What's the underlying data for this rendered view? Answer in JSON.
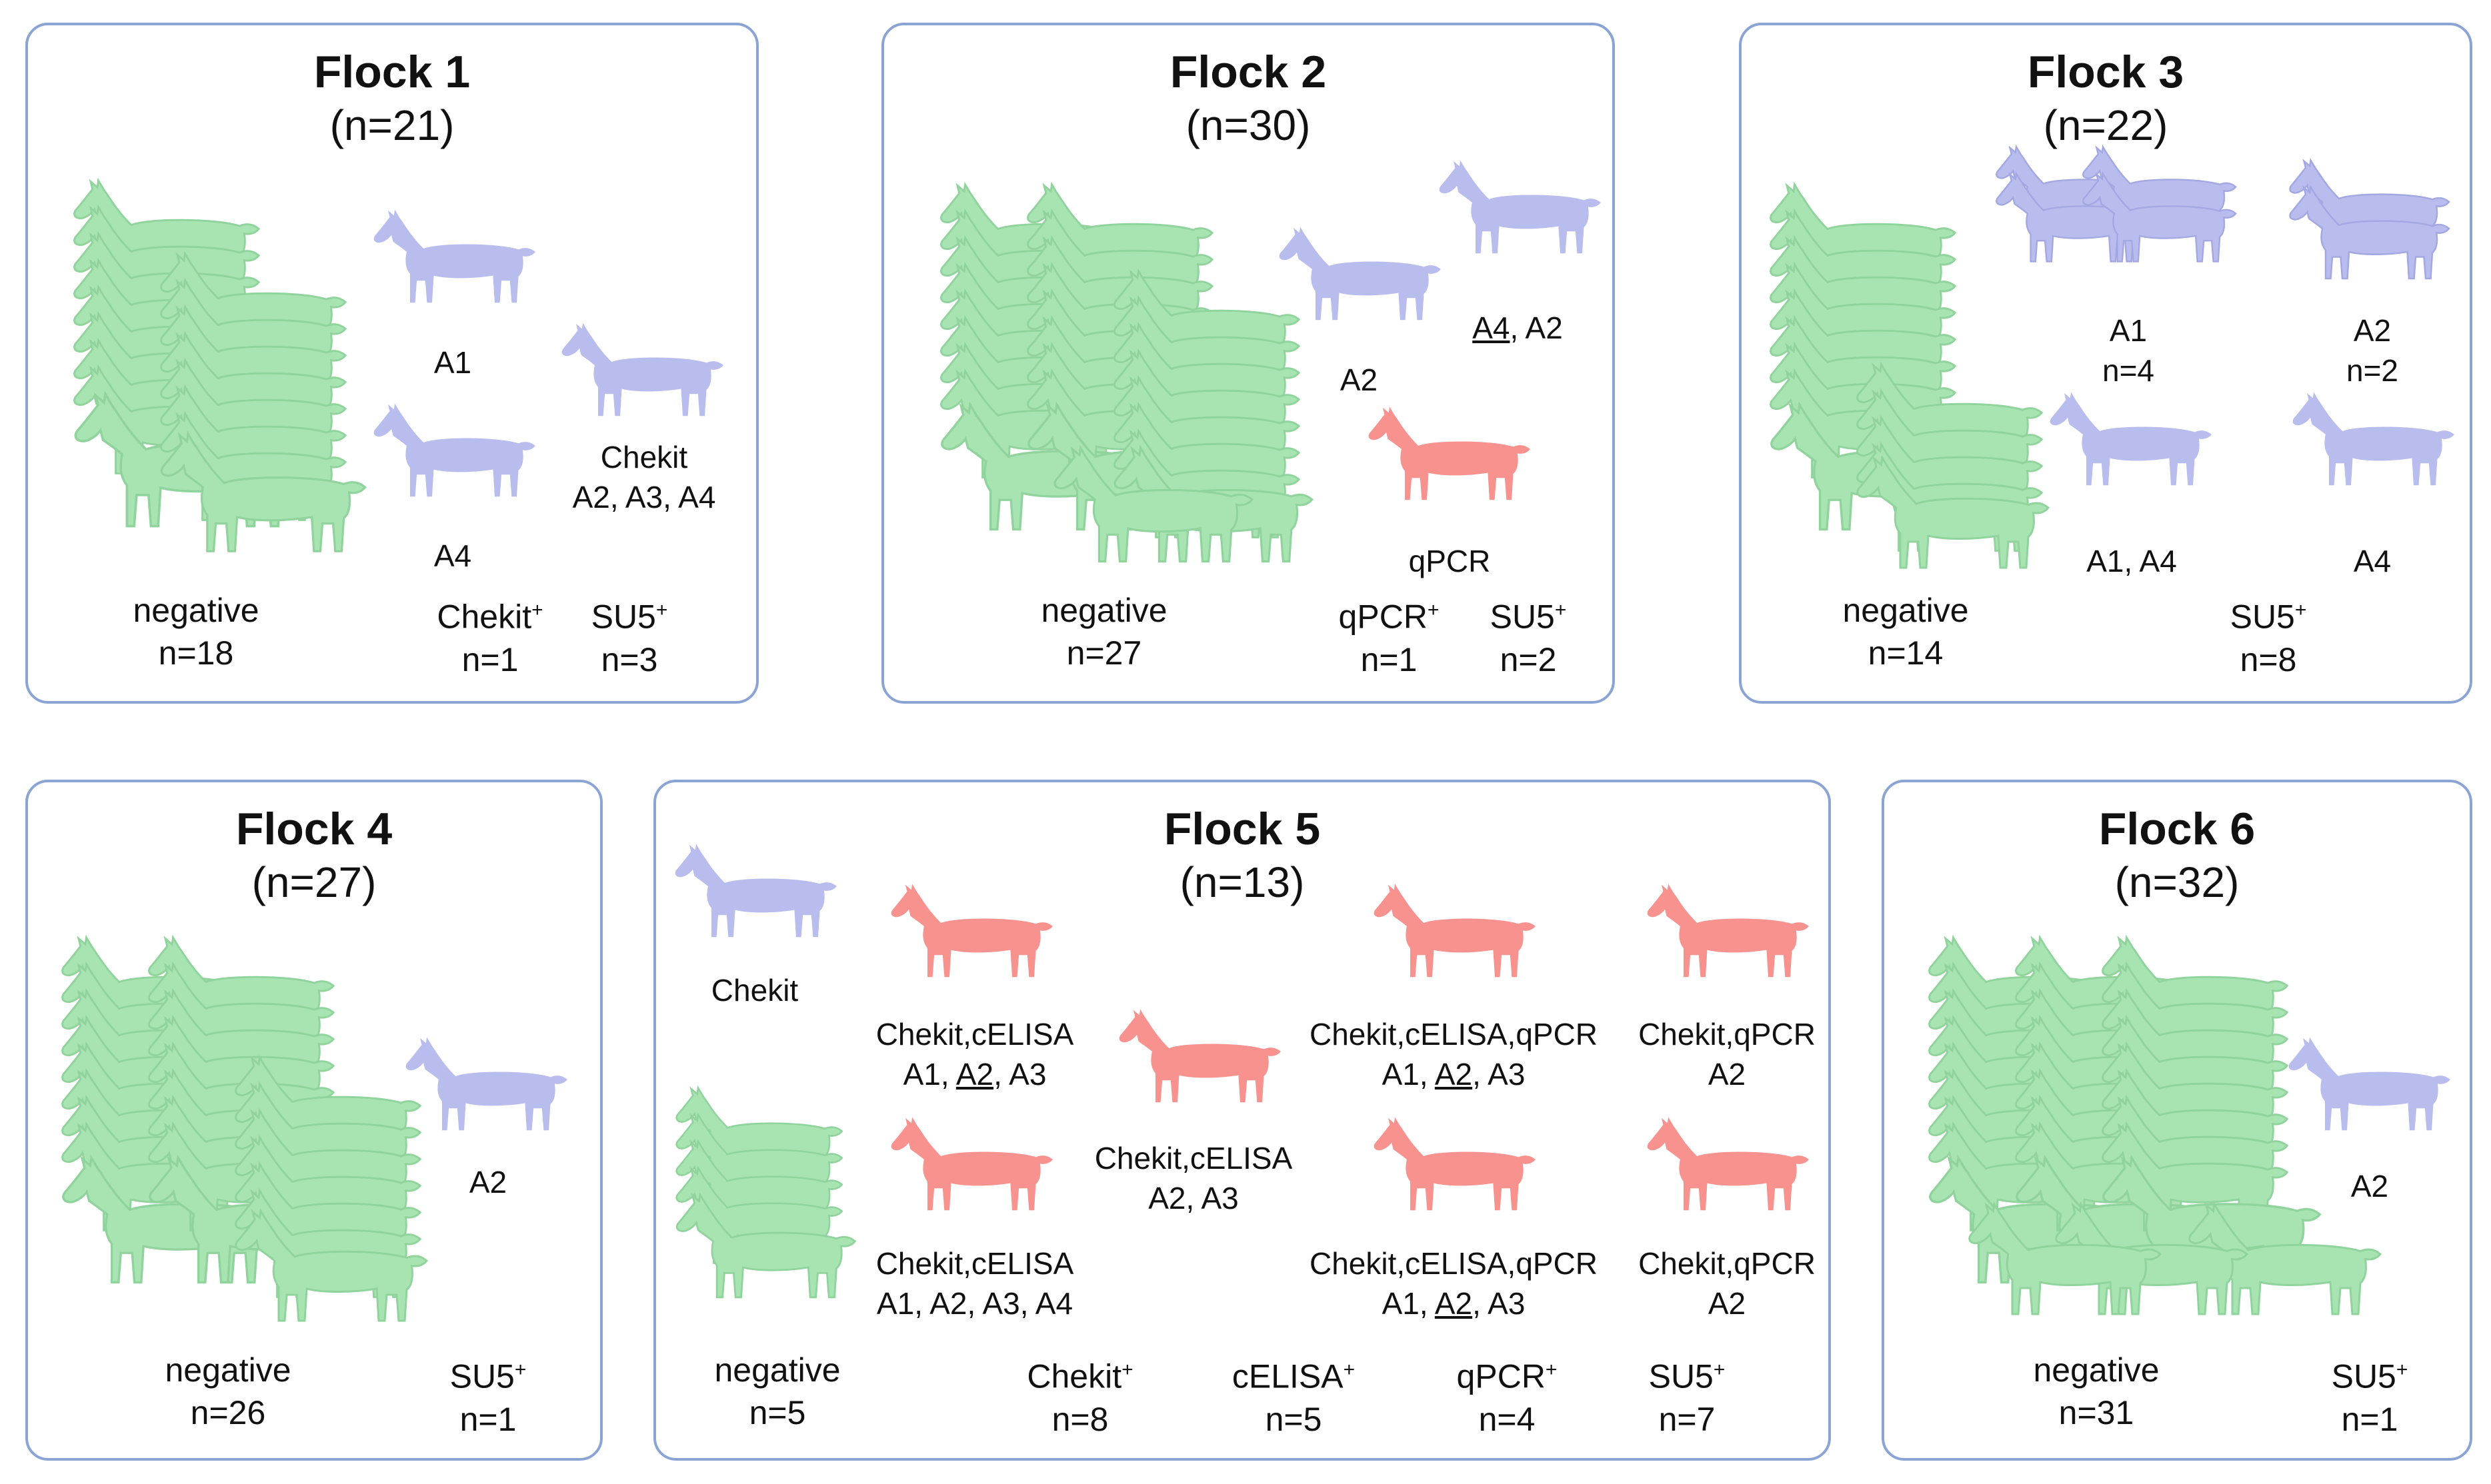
{
  "colors": {
    "negative": "#a8e4b2",
    "su5": "#b9bdee",
    "positive": "#f8928f",
    "border": "#8aa4d4"
  },
  "icon": "goat-icon",
  "flocks": [
    {
      "title": "Flock 1",
      "n": "(n=21)",
      "labels": {
        "a1": "A1",
        "a4": "A4",
        "chekit_line1": "Chekit",
        "chekit_line2": "A2, A3, A4"
      },
      "categories": {
        "negative": {
          "label": "negative",
          "count": "n=18"
        },
        "chekit": {
          "label": "Chekit",
          "count": "n=1"
        },
        "su5": {
          "label": "SU5",
          "count": "n=3"
        }
      }
    },
    {
      "title": "Flock 2",
      "n": "(n=30)",
      "labels": {
        "a2": "A2",
        "a4a2_u": "A4",
        "a4a2_rest": ", A2",
        "qpcr": "qPCR"
      },
      "categories": {
        "negative": {
          "label": "negative",
          "count": "n=27"
        },
        "qpcr": {
          "label": "qPCR",
          "count": "n=1"
        },
        "su5": {
          "label": "SU5",
          "count": "n=2"
        }
      }
    },
    {
      "title": "Flock 3",
      "n": "(n=22)",
      "labels": {
        "a1_line1": "A1",
        "a1_line2": "n=4",
        "a2_line1": "A2",
        "a2_line2": "n=2",
        "a1a4": "A1, A4",
        "a4": "A4"
      },
      "categories": {
        "negative": {
          "label": "negative",
          "count": "n=14"
        },
        "su5": {
          "label": "SU5",
          "count": "n=8"
        }
      }
    },
    {
      "title": "Flock 4",
      "n": "(n=27)",
      "labels": {
        "a2": "A2"
      },
      "categories": {
        "negative": {
          "label": "negative",
          "count": "n=26"
        },
        "su5": {
          "label": "SU5",
          "count": "n=1"
        }
      }
    },
    {
      "title": "Flock 5",
      "n": "(n=13)",
      "labels": {
        "chekit": "Chekit",
        "g1_line1": "Chekit,cELISA",
        "g1_a": "A1, ",
        "g1_u": "A2",
        "g1_b": ", A3",
        "g2_line1": "Chekit,cELISA",
        "g2_line2": "A2, A3",
        "g3_line1": "Chekit,cELISA,qPCR",
        "g3_a": "A1, ",
        "g3_u": "A2",
        "g3_b": ", A3",
        "g4_line1": "Chekit,qPCR",
        "g4_line2": "A2",
        "g5_line1": "Chekit,cELISA",
        "g5_line2": "A1, A2, A3, A4",
        "g6_line1": "Chekit,cELISA,qPCR",
        "g6_a": "A1, ",
        "g6_u": "A2",
        "g6_b": ", A3",
        "g7_line1": "Chekit,qPCR",
        "g7_line2": "A2"
      },
      "categories": {
        "negative": {
          "label": "negative",
          "count": "n=5"
        },
        "chekit": {
          "label": "Chekit",
          "count": "n=8"
        },
        "celisa": {
          "label": "cELISA",
          "count": "n=5"
        },
        "qpcr": {
          "label": "qPCR",
          "count": "n=4"
        },
        "su5": {
          "label": "SU5",
          "count": "n=7"
        }
      }
    },
    {
      "title": "Flock 6",
      "n": "(n=32)",
      "labels": {
        "a2": "A2"
      },
      "categories": {
        "negative": {
          "label": "negative",
          "count": "n=31"
        },
        "su5": {
          "label": "SU5",
          "count": "n=1"
        }
      }
    }
  ]
}
